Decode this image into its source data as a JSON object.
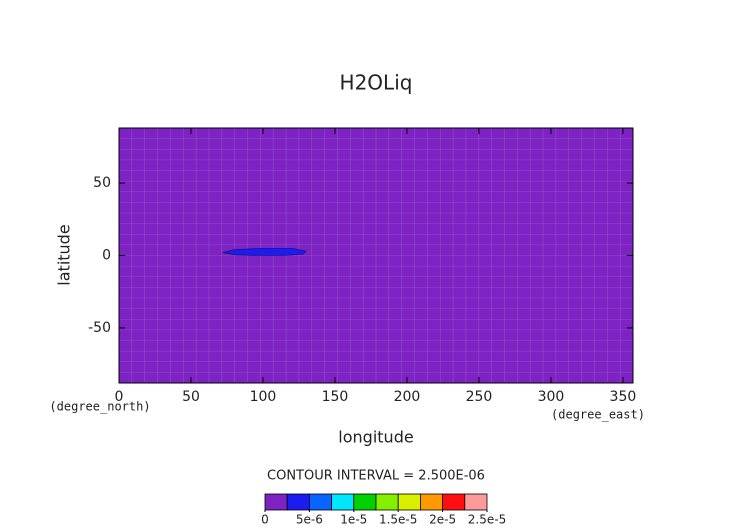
{
  "chart_data": {
    "type": "contour",
    "title": "H2OLiq",
    "x_label": "longitude",
    "y_label": "latitude",
    "x_units": "(degree_east)",
    "y_units": "(degree_north)",
    "xlim": [
      0,
      357
    ],
    "ylim": [
      -88,
      88
    ],
    "xticks": [
      0,
      50,
      100,
      150,
      200,
      250,
      300,
      350
    ],
    "yticks": [
      -50,
      0,
      50
    ],
    "contour_interval_text": "CONTOUR INTERVAL = 2.500E-06",
    "levels": [
      0,
      2.5e-06,
      5e-06,
      7.5e-06,
      1e-05,
      1.25e-05,
      1.5e-05,
      1.75e-05,
      2e-05,
      2.25e-05,
      2.5e-05
    ],
    "colors": [
      "#7d22c3",
      "#1c1cf0",
      "#0a64ff",
      "#00e6ff",
      "#00d200",
      "#84f000",
      "#d8f000",
      "#ff9a00",
      "#ff1010",
      "#ff9a9a"
    ],
    "colorbar_ticks": [
      0,
      {
        "value": 5e-06,
        "label": "5e-6"
      },
      {
        "value": 1e-05,
        "label": "1e-5"
      },
      {
        "value": 1.5e-05,
        "label": "1.5e-5"
      },
      {
        "value": 2e-05,
        "label": "2e-5"
      },
      {
        "value": 2.5e-05,
        "label": "2.5e-5"
      }
    ],
    "contours": [
      {
        "level": 2.5e-06,
        "x": [
          72,
          80,
          100,
          120,
          130,
          128,
          115,
          95,
          80
        ],
        "y": [
          2,
          4,
          5,
          5,
          3,
          1,
          0,
          0,
          0.5
        ]
      }
    ]
  }
}
